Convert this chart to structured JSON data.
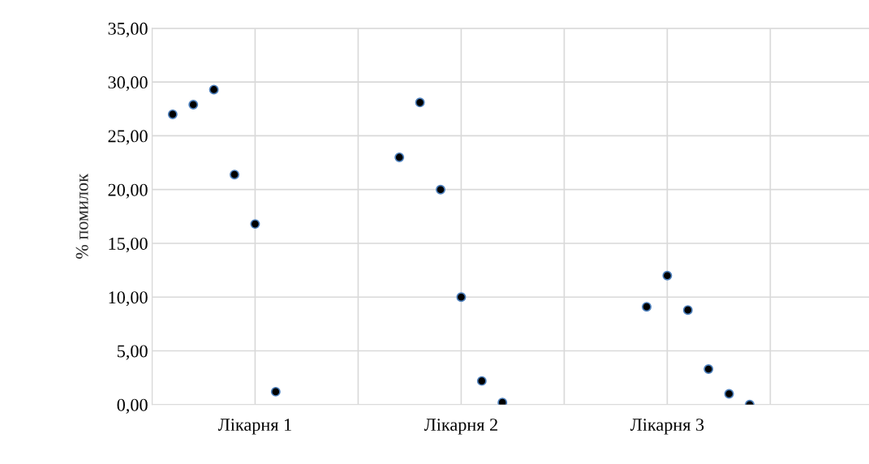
{
  "chart_data": {
    "type": "scatter",
    "ylabel": "% помилок",
    "categories": [
      null,
      null,
      null,
      null,
      null,
      "Лікарня 1",
      null,
      null,
      null,
      null,
      null,
      null,
      null,
      null,
      null,
      "Лікарня 2",
      null,
      null,
      null,
      null,
      null,
      null,
      null,
      null,
      null,
      "Лікарня 3",
      null,
      null,
      null,
      null,
      null,
      null,
      null,
      null,
      null,
      null
    ],
    "series": [
      {
        "color": "#000000",
        "values": [
          null,
          27.0,
          27.9,
          29.3,
          21.4,
          16.8,
          1.2,
          null,
          null,
          null,
          null,
          null,
          23.0,
          28.1,
          20.0,
          10.0,
          2.2,
          0.2,
          null,
          null,
          null,
          null,
          null,
          null,
          9.1,
          12.0,
          8.8,
          3.3,
          1.0,
          0.0,
          null,
          null,
          null,
          null,
          null,
          null
        ]
      }
    ],
    "ylim": [
      0,
      35
    ],
    "yticks": [
      {
        "value": 0,
        "label": "0,00"
      },
      {
        "value": 5,
        "label": "5,00"
      },
      {
        "value": 10,
        "label": "10,00"
      },
      {
        "value": 15,
        "label": "15,00"
      },
      {
        "value": 20,
        "label": "20,00"
      },
      {
        "value": 25,
        "label": "25,00"
      },
      {
        "value": 30,
        "label": "30,00"
      },
      {
        "value": 35,
        "label": "35,00"
      }
    ],
    "grid": true,
    "marker": "circle",
    "legend": false
  }
}
